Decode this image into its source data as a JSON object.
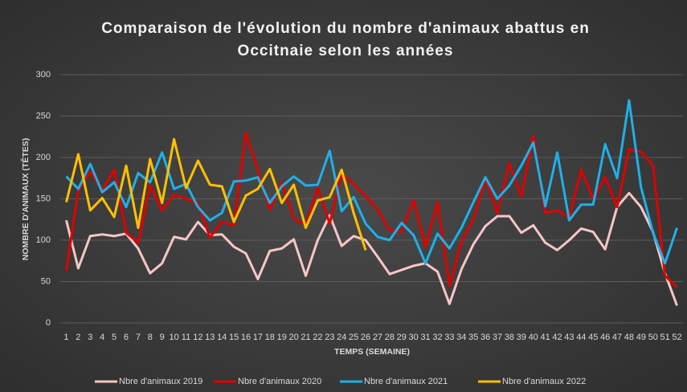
{
  "chart_data": {
    "type": "line",
    "title": "Comparaison de l'évolution du nombre d'animaux abattus en Occitnaie selon les années",
    "x_label": "TEMPS (SEMAINE)",
    "y_label": "NOMBRE D'ANIMAUX (TÊTES)",
    "categories": [
      1,
      2,
      3,
      4,
      5,
      6,
      7,
      8,
      9,
      10,
      11,
      12,
      13,
      14,
      15,
      16,
      17,
      18,
      19,
      20,
      21,
      22,
      23,
      24,
      25,
      26,
      27,
      28,
      29,
      30,
      31,
      32,
      33,
      34,
      35,
      36,
      37,
      38,
      39,
      40,
      41,
      42,
      43,
      44,
      45,
      46,
      47,
      48,
      49,
      50,
      51,
      52
    ],
    "series": [
      {
        "name": "Nbre d'animaux 2019",
        "color": "#f7c6c7",
        "values": [
          124,
          66,
          105,
          107,
          105,
          108,
          90,
          60,
          72,
          104,
          101,
          122,
          106,
          107,
          92,
          84,
          53,
          87,
          90,
          101,
          57,
          100,
          130,
          93,
          105,
          100,
          80,
          59,
          64,
          69,
          72,
          62,
          23,
          65,
          95,
          117,
          129,
          129,
          109,
          118,
          97,
          88,
          100,
          114,
          110,
          89,
          140,
          157,
          140,
          110,
          60,
          21
        ]
      },
      {
        "name": "Nbre d'animaux 2020",
        "color": "#e00000",
        "values": [
          63,
          160,
          183,
          160,
          185,
          109,
          97,
          166,
          136,
          155,
          150,
          145,
          103,
          122,
          118,
          230,
          185,
          137,
          170,
          126,
          118,
          163,
          120,
          180,
          168,
          153,
          137,
          112,
          110,
          148,
          92,
          146,
          45,
          98,
          125,
          175,
          133,
          193,
          153,
          226,
          133,
          136,
          127,
          185,
          150,
          176,
          140,
          210,
          207,
          190,
          57,
          43
        ]
      },
      {
        "name": "Nbre d'animaux 2021",
        "color": "#1fb0e8",
        "values": [
          177,
          162,
          192,
          158,
          170,
          140,
          181,
          170,
          206,
          162,
          168,
          140,
          124,
          133,
          171,
          172,
          176,
          145,
          165,
          177,
          166,
          167,
          208,
          135,
          152,
          120,
          104,
          100,
          121,
          106,
          72,
          108,
          90,
          115,
          146,
          176,
          150,
          166,
          190,
          218,
          141,
          206,
          124,
          143,
          143,
          216,
          175,
          269,
          164,
          109,
          72,
          115
        ]
      },
      {
        "name": "Nbre d'animaux 2022",
        "color": "#ffc000",
        "values": [
          146,
          204,
          136,
          151,
          128,
          190,
          115,
          198,
          145,
          222,
          163,
          196,
          167,
          165,
          122,
          154,
          162,
          186,
          145,
          167,
          115,
          148,
          152,
          185,
          133,
          88,
          null,
          null,
          null,
          null,
          null,
          null,
          null,
          null,
          null,
          null,
          null,
          null,
          null,
          null,
          null,
          null,
          null,
          null,
          null,
          null,
          null,
          null,
          null,
          null,
          null,
          null
        ]
      }
    ],
    "ylim": [
      0,
      300
    ],
    "yticks": [
      0,
      50,
      100,
      150,
      200,
      250,
      300
    ],
    "grid": true,
    "legend": "bottom"
  }
}
